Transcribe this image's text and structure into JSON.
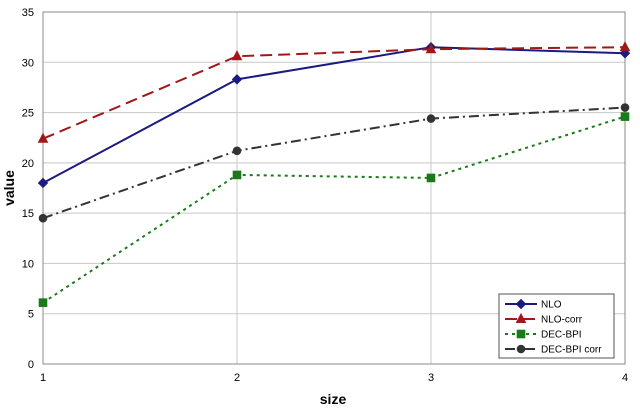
{
  "chart_data": {
    "type": "line",
    "xlabel": "size",
    "ylabel": "value",
    "x": [
      1,
      2,
      3,
      4
    ],
    "xlim": [
      1,
      4
    ],
    "ylim": [
      0,
      35
    ],
    "xticks": [
      "1",
      "2",
      "3",
      "4"
    ],
    "yticks": [
      "0",
      "5",
      "10",
      "15",
      "20",
      "25",
      "30",
      "35"
    ],
    "grid": true,
    "legend_position": "bottom-right",
    "series": [
      {
        "name": "NLO",
        "values": [
          18.0,
          28.3,
          31.5,
          30.9
        ],
        "color": "#1a1a80",
        "dash": "solid",
        "marker": "diamond"
      },
      {
        "name": "NLO-corr",
        "values": [
          22.4,
          30.6,
          31.3,
          31.5
        ],
        "color": "#a01818",
        "dash": "long-dash",
        "marker": "triangle"
      },
      {
        "name": "DEC-BPI",
        "values": [
          6.1,
          18.8,
          18.5,
          24.6
        ],
        "color": "#1a7a1a",
        "dash": "dotted",
        "marker": "square"
      },
      {
        "name": "DEC-BPI corr",
        "values": [
          14.5,
          21.2,
          24.4,
          25.5
        ],
        "color": "#333333",
        "dash": "dash-dot",
        "marker": "circle"
      }
    ]
  }
}
